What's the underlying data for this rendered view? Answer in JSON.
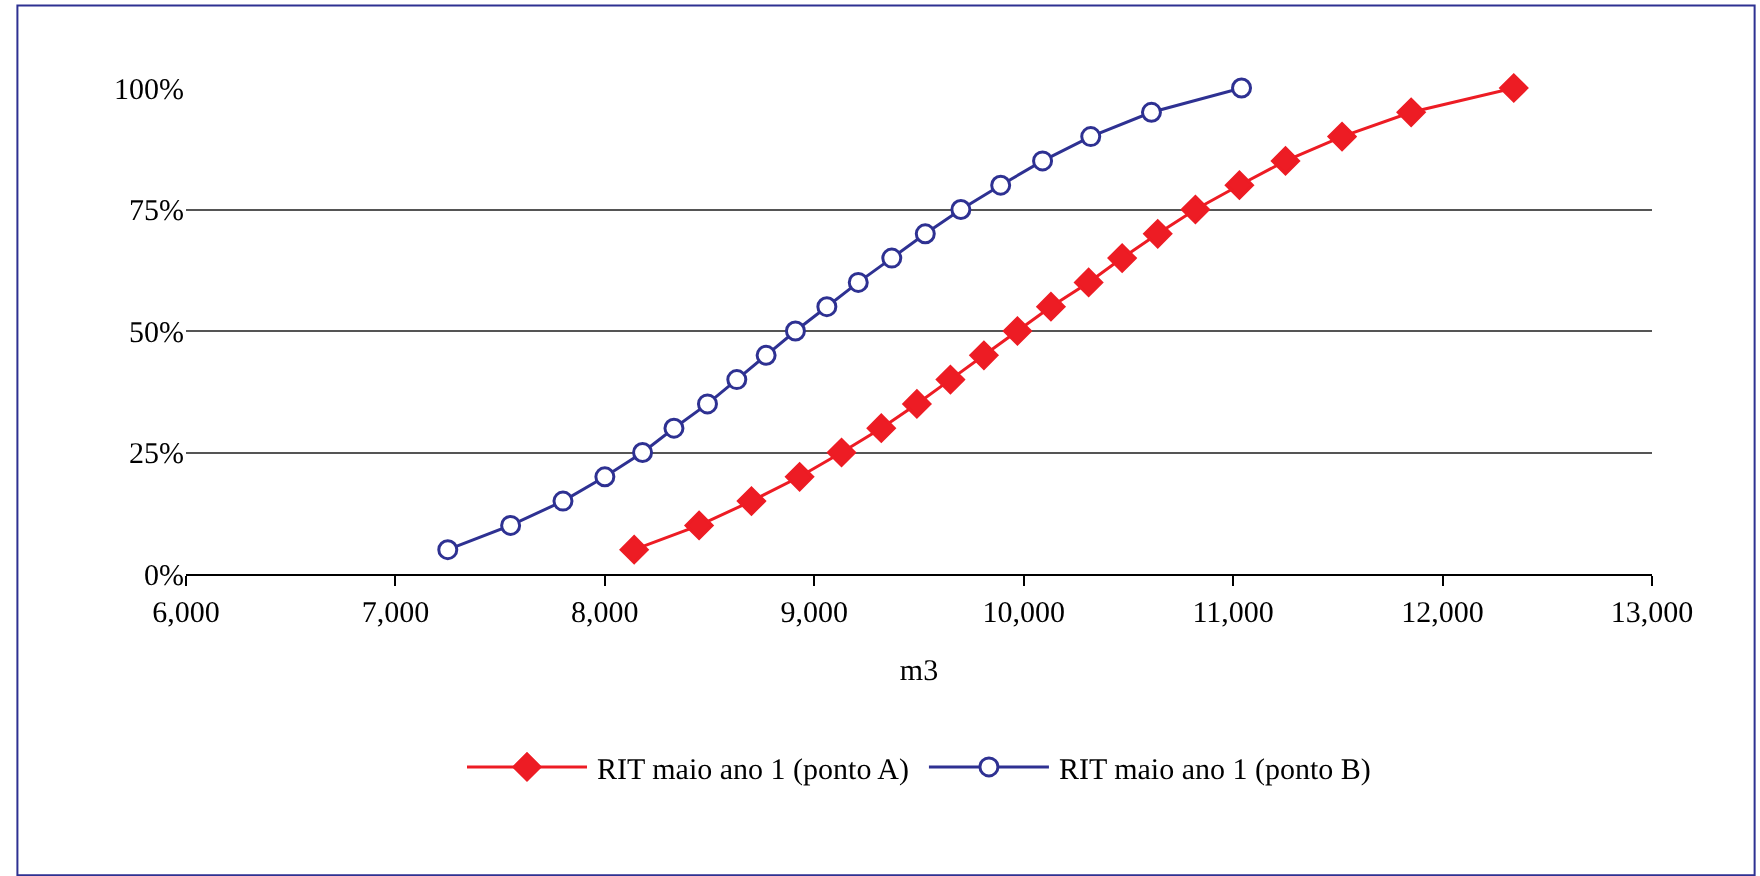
{
  "chart_data": {
    "type": "line",
    "xlabel": "m3",
    "series": [
      {
        "name": "RIT maio ano 1 (ponto A)",
        "color": "#ed1c24",
        "marker": "diamond",
        "x": [
          8140,
          8450,
          8700,
          8930,
          9130,
          9320,
          9490,
          9650,
          9810,
          9970,
          10130,
          10310,
          10470,
          10640,
          10820,
          11030,
          11250,
          11520,
          11850,
          12340
        ],
        "values": [
          5,
          10,
          15,
          20,
          25,
          30,
          35,
          40,
          45,
          50,
          55,
          60,
          65,
          70,
          75,
          80,
          85,
          90,
          95,
          100
        ]
      },
      {
        "name": "RIT maio ano 1 (ponto B)",
        "color": "#2e3192",
        "marker": "circle",
        "x": [
          7250,
          7550,
          7800,
          8000,
          8180,
          8330,
          8490,
          8630,
          8770,
          8910,
          9060,
          9210,
          9370,
          9530,
          9700,
          9890,
          10090,
          10320,
          10610,
          11040
        ],
        "values": [
          5,
          10,
          15,
          20,
          25,
          30,
          35,
          40,
          45,
          50,
          55,
          60,
          65,
          70,
          75,
          80,
          85,
          90,
          95,
          100
        ]
      }
    ],
    "xlim": [
      6000,
      13000
    ],
    "xticks": [
      {
        "value": 6000,
        "label": "6,000"
      },
      {
        "value": 7000,
        "label": "7,000"
      },
      {
        "value": 8000,
        "label": "8,000"
      },
      {
        "value": 9000,
        "label": "9,000"
      },
      {
        "value": 10000,
        "label": "10,000"
      },
      {
        "value": 11000,
        "label": "11,000"
      },
      {
        "value": 12000,
        "label": "12,000"
      },
      {
        "value": 13000,
        "label": "13,000"
      }
    ],
    "ylim": [
      0,
      100
    ],
    "yticks": [
      {
        "value": 0,
        "label": "0%"
      },
      {
        "value": 25,
        "label": "25%"
      },
      {
        "value": 50,
        "label": "50%"
      },
      {
        "value": 75,
        "label": "75%"
      },
      {
        "value": 100,
        "label": "100%"
      }
    ],
    "grid": "y",
    "legend": "bottom",
    "line_style": "solid"
  }
}
